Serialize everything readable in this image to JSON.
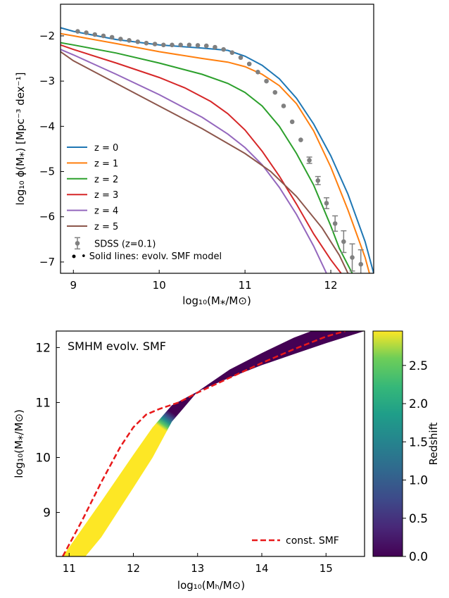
{
  "chart_data": [
    {
      "type": "line",
      "title": "",
      "xlabel": "log₁₀(M⁎/M⊙)",
      "ylabel": "log₁₀ ϕ(M⁎) [Mpc⁻³ dex⁻¹]",
      "xlim": [
        8.85,
        12.5
      ],
      "ylim": [
        -7.25,
        -1.3
      ],
      "xticks": [
        "9",
        "10",
        "11",
        "12"
      ],
      "yticks": [
        "−2",
        "−3",
        "−4",
        "−5",
        "−6",
        "−7"
      ],
      "grid": false,
      "legend_position": "lower-left",
      "legend": [
        "z = 0",
        "z = 1",
        "z = 2",
        "z = 3",
        "z = 4",
        "z = 5",
        "SDSS (z=0.1)"
      ],
      "annotation": "• Solid lines: evolv. SMF model",
      "series": [
        {
          "name": "z = 0",
          "color": "#1f77b4",
          "x": [
            8.85,
            9.0,
            9.5,
            10.0,
            10.5,
            10.8,
            11.0,
            11.2,
            11.4,
            11.6,
            11.8,
            12.0,
            12.2,
            12.4,
            12.5
          ],
          "y": [
            -1.82,
            -1.9,
            -2.08,
            -2.2,
            -2.27,
            -2.32,
            -2.45,
            -2.65,
            -2.95,
            -3.38,
            -3.95,
            -4.65,
            -5.5,
            -6.55,
            -7.25
          ]
        },
        {
          "name": "z = 1",
          "color": "#ff7f0e",
          "x": [
            8.85,
            9.0,
            9.5,
            10.0,
            10.5,
            10.8,
            11.0,
            11.2,
            11.4,
            11.6,
            11.8,
            12.0,
            12.2,
            12.4,
            12.45
          ],
          "y": [
            -1.95,
            -2.0,
            -2.17,
            -2.35,
            -2.5,
            -2.58,
            -2.68,
            -2.85,
            -3.1,
            -3.5,
            -4.1,
            -4.9,
            -5.85,
            -6.9,
            -7.25
          ]
        },
        {
          "name": "z = 2",
          "color": "#2ca02c",
          "x": [
            8.85,
            9.0,
            9.5,
            10.0,
            10.5,
            10.8,
            11.0,
            11.2,
            11.4,
            11.6,
            11.8,
            12.0,
            12.1,
            12.25
          ],
          "y": [
            -2.15,
            -2.2,
            -2.38,
            -2.6,
            -2.85,
            -3.05,
            -3.25,
            -3.55,
            -4.0,
            -4.6,
            -5.3,
            -6.2,
            -6.7,
            -7.25
          ]
        },
        {
          "name": "z = 3",
          "color": "#d62728",
          "x": [
            8.85,
            9.0,
            9.5,
            10.0,
            10.3,
            10.6,
            10.8,
            11.0,
            11.2,
            11.4,
            11.6,
            11.8,
            12.0,
            12.12
          ],
          "y": [
            -2.2,
            -2.3,
            -2.6,
            -2.92,
            -3.15,
            -3.45,
            -3.72,
            -4.08,
            -4.55,
            -5.1,
            -5.72,
            -6.38,
            -6.95,
            -7.25
          ]
        },
        {
          "name": "z = 4",
          "color": "#9467bd",
          "x": [
            8.85,
            9.0,
            9.5,
            10.0,
            10.5,
            10.8,
            11.0,
            11.2,
            11.4,
            11.6,
            11.8,
            11.95
          ],
          "y": [
            -2.3,
            -2.42,
            -2.85,
            -3.3,
            -3.8,
            -4.17,
            -4.47,
            -4.85,
            -5.35,
            -5.95,
            -6.65,
            -7.25
          ]
        },
        {
          "name": "z = 5",
          "color": "#8c564b",
          "x": [
            8.85,
            9.0,
            9.5,
            10.0,
            10.5,
            11.0,
            11.3,
            11.6,
            11.9,
            12.1,
            12.2
          ],
          "y": [
            -2.35,
            -2.55,
            -3.05,
            -3.55,
            -4.05,
            -4.6,
            -5.0,
            -5.55,
            -6.25,
            -6.85,
            -7.25
          ]
        }
      ],
      "points": {
        "name": "SDSS (z=0.1)",
        "color": "#808080",
        "x": [
          9.05,
          9.15,
          9.25,
          9.35,
          9.45,
          9.55,
          9.65,
          9.75,
          9.85,
          9.95,
          10.05,
          10.15,
          10.25,
          10.35,
          10.45,
          10.55,
          10.65,
          10.75,
          10.85,
          10.95,
          11.05,
          11.15,
          11.25,
          11.35,
          11.45,
          11.55,
          11.65,
          11.75,
          11.85,
          11.95,
          12.05,
          12.15,
          12.25,
          12.35
        ],
        "y": [
          -1.9,
          -1.93,
          -1.97,
          -2.0,
          -2.03,
          -2.07,
          -2.1,
          -2.13,
          -2.16,
          -2.18,
          -2.2,
          -2.2,
          -2.2,
          -2.2,
          -2.21,
          -2.22,
          -2.25,
          -2.3,
          -2.37,
          -2.48,
          -2.62,
          -2.8,
          -3.0,
          -3.25,
          -3.55,
          -3.9,
          -4.3,
          -4.75,
          -5.2,
          -5.7,
          -6.15,
          -6.55,
          -6.9,
          -7.05
        ],
        "yerr": [
          0.02,
          0.02,
          0.02,
          0.02,
          0.02,
          0.02,
          0.02,
          0.02,
          0.02,
          0.02,
          0.02,
          0.02,
          0.02,
          0.02,
          0.02,
          0.02,
          0.02,
          0.02,
          0.02,
          0.02,
          0.02,
          0.02,
          0.02,
          0.02,
          0.03,
          0.04,
          0.05,
          0.07,
          0.09,
          0.12,
          0.17,
          0.24,
          0.3,
          0.32
        ]
      }
    },
    {
      "type": "area",
      "title": "SMHM evolv. SMF",
      "xlabel": "log₁₀(Mₕ/M⊙)",
      "ylabel": "log₁₀(M⁎/M⊙)",
      "xlim": [
        10.8,
        15.6
      ],
      "ylim": [
        8.2,
        12.3
      ],
      "xticks": [
        "11",
        "12",
        "13",
        "14",
        "15"
      ],
      "yticks": [
        "9",
        "10",
        "11",
        "12"
      ],
      "grid": false,
      "legend_position": "lower-right",
      "legend": [
        "const. SMF"
      ],
      "colorbar": {
        "label": "Redshift",
        "range": [
          0.0,
          2.95
        ],
        "ticks": [
          "0.0",
          "0.5",
          "1.0",
          "1.5",
          "2.0",
          "2.5"
        ],
        "colormap": "viridis"
      },
      "band": {
        "name": "Redshift",
        "x": [
          10.9,
          11.5,
          12.0,
          12.3,
          12.6,
          13.0,
          13.5,
          14.0,
          14.5,
          15.0,
          15.6
        ],
        "y_z0": [
          8.2,
          9.2,
          10.05,
          10.55,
          10.95,
          11.2,
          11.45,
          11.68,
          11.88,
          12.08,
          12.3
        ],
        "y_zmax": [
          7.7,
          8.55,
          9.45,
          10.0,
          10.65,
          11.2,
          11.6,
          11.9,
          12.18,
          12.4,
          12.6
        ]
      },
      "series": [
        {
          "name": "const. SMF",
          "color": "#e8191a",
          "dashed": true,
          "x": [
            10.9,
            11.2,
            11.5,
            11.8,
            12.0,
            12.2,
            12.4,
            12.7,
            13.0,
            13.5,
            14.0,
            14.5,
            15.0,
            15.3
          ],
          "y": [
            8.2,
            8.85,
            9.55,
            10.2,
            10.55,
            10.78,
            10.88,
            11.0,
            11.18,
            11.45,
            11.72,
            11.97,
            12.2,
            12.3
          ]
        }
      ]
    }
  ]
}
